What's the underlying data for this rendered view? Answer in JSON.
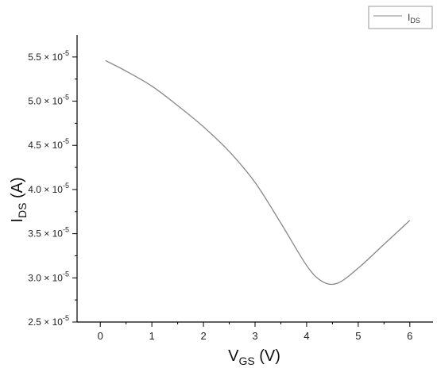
{
  "chart_data": {
    "type": "line",
    "xlabel": {
      "main": "V",
      "sub": "GS",
      "unit": " (V)"
    },
    "ylabel": {
      "main": "I",
      "sub": "DS",
      "unit": " (A)"
    },
    "xlim": [
      -0.45,
      6.45
    ],
    "ylim": [
      2.5e-05,
      5.75e-05
    ],
    "x_ticks": [
      0,
      1,
      2,
      3,
      4,
      5,
      6
    ],
    "y_ticks": [
      {
        "mant": "2.5",
        "exp": "-5",
        "value": 2.5e-05
      },
      {
        "mant": "3.0",
        "exp": "-5",
        "value": 3e-05
      },
      {
        "mant": "3.5",
        "exp": "-5",
        "value": 3.5e-05
      },
      {
        "mant": "4.0",
        "exp": "-5",
        "value": 4e-05
      },
      {
        "mant": "4.5",
        "exp": "-5",
        "value": 4.5e-05
      },
      {
        "mant": "5.0",
        "exp": "-5",
        "value": 5e-05
      },
      {
        "mant": "5.5",
        "exp": "-5",
        "value": 5.5e-05
      }
    ],
    "y_tick_mult": "× 10",
    "grid": false,
    "legend_position": "top-right",
    "series": [
      {
        "name": {
          "main": "I",
          "sub": "DS"
        },
        "color": "#888888",
        "x": [
          0.1,
          0.5,
          1.0,
          1.5,
          2.0,
          2.5,
          3.0,
          3.5,
          4.0,
          4.3,
          4.6,
          5.0,
          5.5,
          6.0
        ],
        "y": [
          5.46e-05,
          5.34e-05,
          5.17e-05,
          4.95e-05,
          4.71e-05,
          4.43e-05,
          4.08e-05,
          3.62e-05,
          3.14e-05,
          2.96e-05,
          2.94e-05,
          3.11e-05,
          3.38e-05,
          3.65e-05
        ]
      }
    ]
  }
}
